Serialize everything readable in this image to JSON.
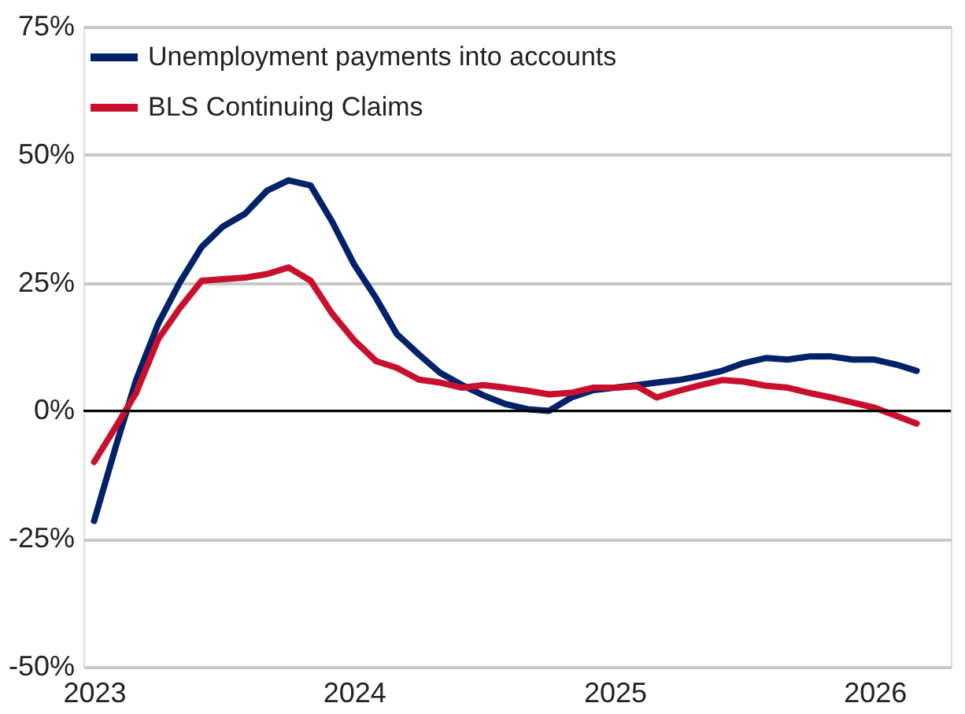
{
  "chart_data": {
    "type": "line",
    "x": [
      "2023-01",
      "2023-02",
      "2023-03",
      "2023-04",
      "2023-05",
      "2023-06",
      "2023-07",
      "2023-08",
      "2023-09",
      "2023-10",
      "2023-11",
      "2023-12",
      "2024-01",
      "2024-02",
      "2024-03",
      "2024-04",
      "2024-05",
      "2024-06",
      "2024-07",
      "2024-08",
      "2024-09",
      "2024-10",
      "2024-11",
      "2024-12",
      "2025-01",
      "2025-02",
      "2025-03",
      "2025-04",
      "2025-05",
      "2025-06",
      "2025-07",
      "2025-08",
      "2025-09",
      "2025-10",
      "2025-11",
      "2025-12",
      "2026-01",
      "2026-02",
      "2026-03"
    ],
    "series": [
      {
        "name": "Unemployment payments into accounts",
        "color": "#012169",
        "values": [
          -21.5,
          -6.7,
          6,
          17,
          25,
          32,
          36,
          38.5,
          43,
          45,
          44,
          37,
          28.6,
          22,
          15,
          11,
          7.4,
          5,
          3,
          1.3,
          0.3,
          0,
          2.6,
          4,
          4.5,
          5,
          5.5,
          6,
          6.8,
          7.8,
          9.3,
          10.3,
          10,
          10.6,
          10.6,
          10,
          10,
          9,
          7.8
        ]
      },
      {
        "name": "BLS Continuing Claims",
        "color": "#c8102e",
        "values": [
          -10,
          -3,
          3.5,
          14,
          20,
          25.4,
          25.7,
          26,
          26.7,
          28,
          25.4,
          19,
          13.8,
          9.7,
          8.4,
          6.1,
          5.5,
          4.5,
          5,
          4.5,
          3.9,
          3.2,
          3.5,
          4.5,
          4.5,
          4.8,
          2.6,
          3.9,
          5,
          6,
          5.7,
          4.9,
          4.5,
          3.5,
          2.6,
          1.6,
          0.6,
          -1,
          -2.5
        ]
      }
    ],
    "xlim": [
      "2022-12-17",
      "2026-04-18"
    ],
    "xticks": [
      "2023",
      "2024",
      "2025",
      "2026"
    ],
    "ylim": [
      -50,
      75
    ],
    "yticks": [
      {
        "value": -50,
        "label": "-50%"
      },
      {
        "value": -25,
        "label": "-25%"
      },
      {
        "value": 0,
        "label": "0%"
      },
      {
        "value": 25,
        "label": "25%"
      },
      {
        "value": 50,
        "label": "50%"
      },
      {
        "value": 75,
        "label": "75%"
      }
    ],
    "ref_lines": [
      {
        "axis": "y",
        "value": 0,
        "color": "#000000"
      }
    ],
    "grid": "y",
    "legend": "top left",
    "line_style": "solid"
  }
}
